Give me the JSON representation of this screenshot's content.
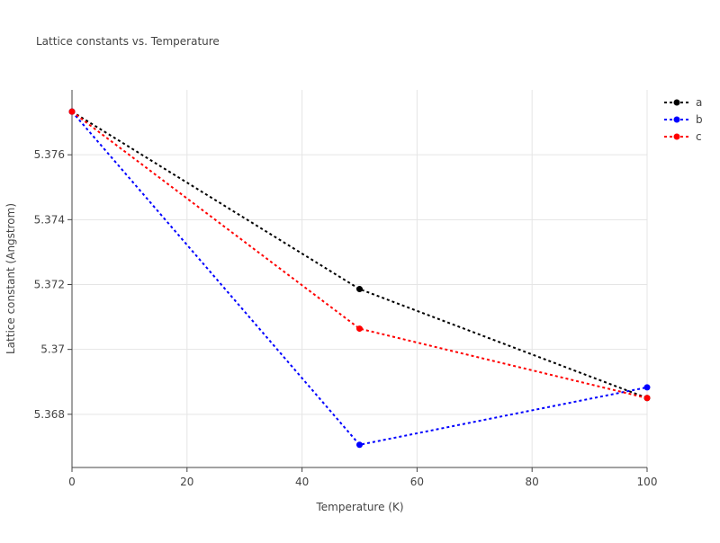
{
  "chart_data": {
    "type": "line",
    "title": "Lattice constants vs. Temperature",
    "x_label": "Temperature (K)",
    "y_label": "Lattice constant (Angstrom)",
    "x": [
      0,
      50,
      100
    ],
    "series": [
      {
        "name": "a",
        "color": "#000000",
        "values": [
          5.37733,
          5.37186,
          5.3685
        ]
      },
      {
        "name": "b",
        "color": "#0000ff",
        "values": [
          5.37733,
          5.36706,
          5.36883
        ]
      },
      {
        "name": "c",
        "color": "#ff0000",
        "values": [
          5.37733,
          5.37064,
          5.3685
        ]
      }
    ],
    "xlim": [
      0,
      100
    ],
    "xticks": [
      0,
      20,
      40,
      60,
      80,
      100
    ],
    "ylim": [
      5.36636,
      5.378
    ],
    "yticks": [
      5.368,
      5.37,
      5.372,
      5.374,
      5.376
    ],
    "grid": true,
    "legend": "top-right"
  }
}
